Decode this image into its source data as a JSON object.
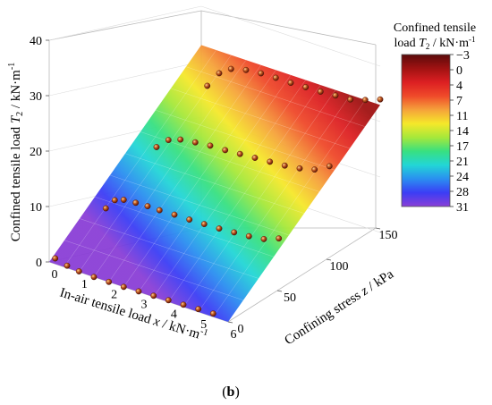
{
  "chart_data": {
    "type": "surface3d",
    "panel_label": "(b)",
    "axes": {
      "x": {
        "label_main": "In-air tensile load",
        "label_var": "x",
        "label_unit": " / kN·m",
        "label_sup": "-1",
        "range": [
          0,
          6
        ],
        "ticks": [
          "0",
          "1",
          "2",
          "3",
          "4",
          "5",
          "6"
        ]
      },
      "y": {
        "label_main": "Confining stress",
        "label_var": "z",
        "label_unit": " / kPa",
        "range": [
          0,
          150
        ],
        "ticks": [
          "0",
          "50",
          "100",
          "150"
        ]
      },
      "z": {
        "label_main": "Confined tensile load",
        "label_var": "T",
        "label_sub": "2",
        "label_unit": " / kN·m",
        "label_sup": "-1",
        "range": [
          0,
          40
        ],
        "ticks": [
          "0",
          "10",
          "20",
          "30",
          "40"
        ]
      }
    },
    "colorbar": {
      "title_line1": "Confined tensile",
      "title_line2_main": "load",
      "title_line2_var": "T",
      "title_line2_sub": "2",
      "title_line2_unit": " / kN·m",
      "title_line2_sup": "-1",
      "levels": [
        "−3",
        "0",
        "4",
        "7",
        "11",
        "14",
        "17",
        "21",
        "24",
        "28",
        "31"
      ],
      "colors": [
        "#8a3fd6",
        "#3b3df5",
        "#2a8ff0",
        "#22d6d6",
        "#38e080",
        "#a6e83a",
        "#f5e82a",
        "#f5a23a",
        "#ef4a2a",
        "#dc1f22",
        "#a01212",
        "#5a0a0a"
      ]
    },
    "surface": {
      "type": "plane",
      "corner_values": [
        {
          "x": 0,
          "z": 0,
          "T2": 0
        },
        {
          "x": 6,
          "z": 0,
          "T2": 0
        },
        {
          "x": 0,
          "z": 150,
          "T2": 33
        },
        {
          "x": 6,
          "z": 150,
          "T2": 33
        }
      ]
    },
    "series": [
      {
        "z": 0,
        "points": [
          [
            0.2,
            1.0
          ],
          [
            0.6,
            0.4
          ],
          [
            1.0,
            0.1
          ],
          [
            1.5,
            0.0
          ],
          [
            2.0,
            0.0
          ],
          [
            2.5,
            0.0
          ],
          [
            3.0,
            0.1
          ],
          [
            3.5,
            0.2
          ],
          [
            4.0,
            0.3
          ],
          [
            4.5,
            0.4
          ],
          [
            5.0,
            0.5
          ],
          [
            5.5,
            0.6
          ]
        ]
      },
      {
        "z": 50,
        "points": [
          [
            0.2,
            8.0
          ],
          [
            0.5,
            10.0
          ],
          [
            0.8,
            10.6
          ],
          [
            1.2,
            10.8
          ],
          [
            1.6,
            10.9
          ],
          [
            2.0,
            10.9
          ],
          [
            2.5,
            11.0
          ],
          [
            3.0,
            11.0
          ],
          [
            3.5,
            11.1
          ],
          [
            4.0,
            11.2
          ],
          [
            4.5,
            11.4
          ],
          [
            5.0,
            11.6
          ],
          [
            5.5,
            12.0
          ],
          [
            6.0,
            13.0
          ]
        ]
      },
      {
        "z": 100,
        "points": [
          [
            0.2,
            17.0
          ],
          [
            0.6,
            19.0
          ],
          [
            1.0,
            19.8
          ],
          [
            1.5,
            20.2
          ],
          [
            2.0,
            20.5
          ],
          [
            2.5,
            20.6
          ],
          [
            3.0,
            20.8
          ],
          [
            3.5,
            21.0
          ],
          [
            4.0,
            21.2
          ],
          [
            4.5,
            21.4
          ],
          [
            5.0,
            21.8
          ],
          [
            5.5,
            22.5
          ],
          [
            6.0,
            24.0
          ]
        ]
      },
      {
        "z": 150,
        "points": [
          [
            0.2,
            26.0
          ],
          [
            0.6,
            29.0
          ],
          [
            1.0,
            30.5
          ],
          [
            1.5,
            31.2
          ],
          [
            2.0,
            31.5
          ],
          [
            2.5,
            31.6
          ],
          [
            3.0,
            31.6
          ],
          [
            3.5,
            31.7
          ],
          [
            4.0,
            31.8
          ],
          [
            4.5,
            32.0
          ],
          [
            5.0,
            32.2
          ],
          [
            5.5,
            33.0
          ],
          [
            6.0,
            34.0
          ]
        ]
      }
    ]
  }
}
